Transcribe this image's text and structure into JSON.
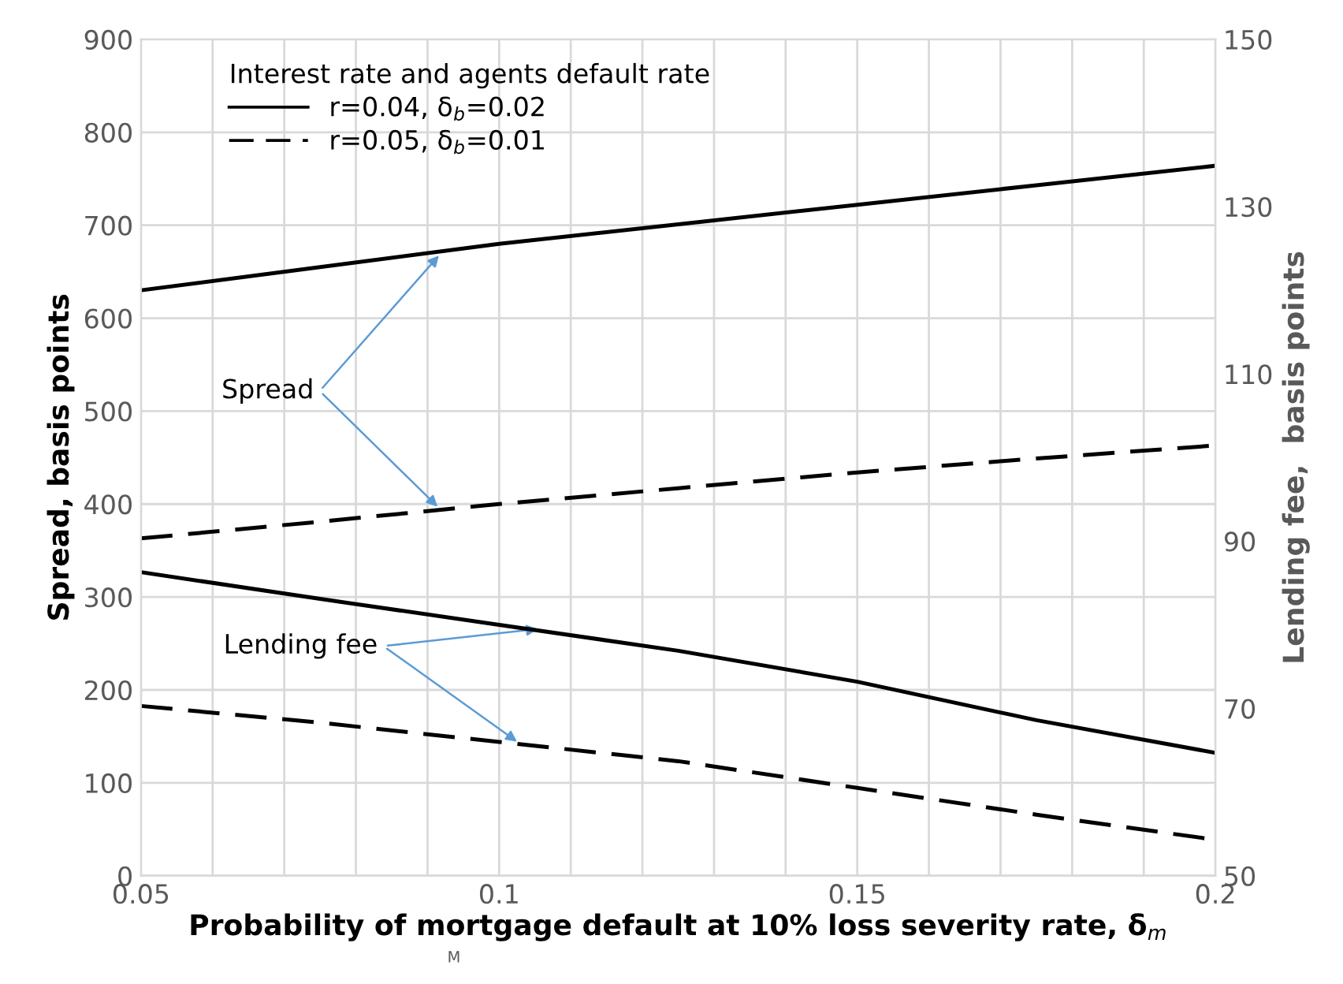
{
  "chart_data": {
    "type": "line",
    "xlabel": "Probability of mortgage default at 10% loss severity rate, δ$_{m}$",
    "ylabel": "Spread, basis points",
    "y2label": "Lending fee,  basis points",
    "legend_title": "Interest rate and agents default rate",
    "legend": "top left",
    "grid": true,
    "x": [
      0.05,
      0.075,
      0.1,
      0.125,
      0.15,
      0.175,
      0.2
    ],
    "xlim": [
      0.05,
      0.2
    ],
    "xticks": [
      0.05,
      {
        "value": 0.06,
        "label": null
      },
      {
        "value": 0.07,
        "label": null
      },
      {
        "value": 0.08,
        "label": null
      },
      {
        "value": 0.09,
        "label": null
      },
      0.1,
      {
        "value": 0.11,
        "label": null
      },
      {
        "value": 0.12,
        "label": null
      },
      {
        "value": 0.13,
        "label": null
      },
      {
        "value": 0.14,
        "label": null
      },
      0.15,
      {
        "value": 0.16,
        "label": null
      },
      {
        "value": 0.17,
        "label": null
      },
      {
        "value": 0.18,
        "label": null
      },
      {
        "value": 0.19,
        "label": null
      },
      0.2
    ],
    "ylim": [
      0,
      900
    ],
    "yticks": [
      0,
      100,
      200,
      300,
      400,
      500,
      600,
      700,
      800,
      900
    ],
    "y2lim": [
      50,
      150
    ],
    "y2ticks": [
      50,
      70,
      90,
      110,
      130,
      150
    ],
    "series": [
      {
        "name": "r=0.04, δ$_{b}$=0.02",
        "color": "#000000",
        "line_style": "solid",
        "values": [
          630,
          655,
          680,
          701,
          722,
          743,
          764
        ]
      },
      {
        "name": "r=0.05, δ$_{b}$=0.01",
        "color": "#000000",
        "line_style": "dashed",
        "values": [
          363,
          381,
          400,
          417,
          434,
          449,
          463
        ]
      },
      {
        "color": "#000000",
        "line_style": "solid",
        "axis": "y2",
        "values": [
          86.3,
          83.1,
          80.0,
          76.9,
          73.2,
          68.6,
          64.7
        ]
      },
      {
        "color": "#000000",
        "line_style": "dashed",
        "axis": "y2",
        "values": [
          70.3,
          68.3,
          66.0,
          63.7,
          60.5,
          57.3,
          54.3
        ]
      }
    ],
    "annotations": [
      {
        "text": "Spread",
        "x": 0.092,
        "y": 671
      },
      {
        "text": "Lending fee",
        "x": 0.106,
        "y": 266
      },
      "M"
    ]
  }
}
